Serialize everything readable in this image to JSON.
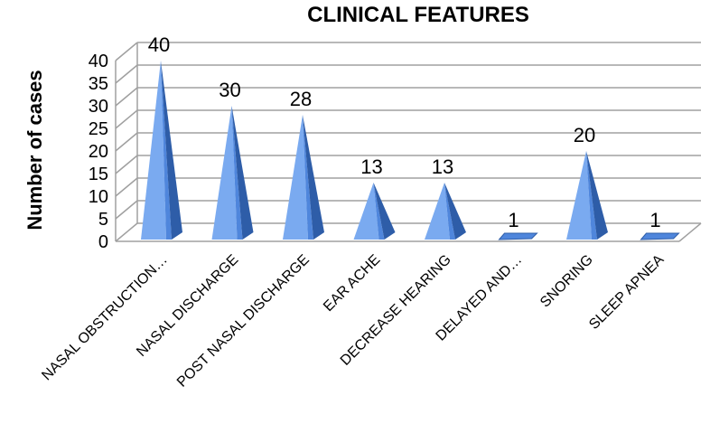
{
  "chart_data": {
    "type": "bar",
    "style": "3d-pyramid",
    "title": "CLINICAL FEATURES",
    "xlabel": "",
    "ylabel": "Number of cases",
    "ylim": [
      0,
      40
    ],
    "yticks": [
      0,
      5,
      10,
      15,
      20,
      25,
      30,
      35,
      40
    ],
    "grid": true,
    "legend": "none",
    "colors": {
      "bar_light": "#7aaaf0",
      "bar_mid": "#4f86dc",
      "bar_dark": "#2e5da8",
      "grid": "#a0a0a0"
    },
    "categories": [
      "NASAL OBSTRUCTION…",
      "NASAL DISCHARGE",
      "POST NASAL DISCHARGE",
      "EAR ACHE",
      "DECREASE HEARING",
      "DELAYED AND…",
      "SNORING",
      "SLEEP APNEA"
    ],
    "values": [
      40,
      30,
      28,
      13,
      13,
      1,
      20,
      1
    ]
  }
}
